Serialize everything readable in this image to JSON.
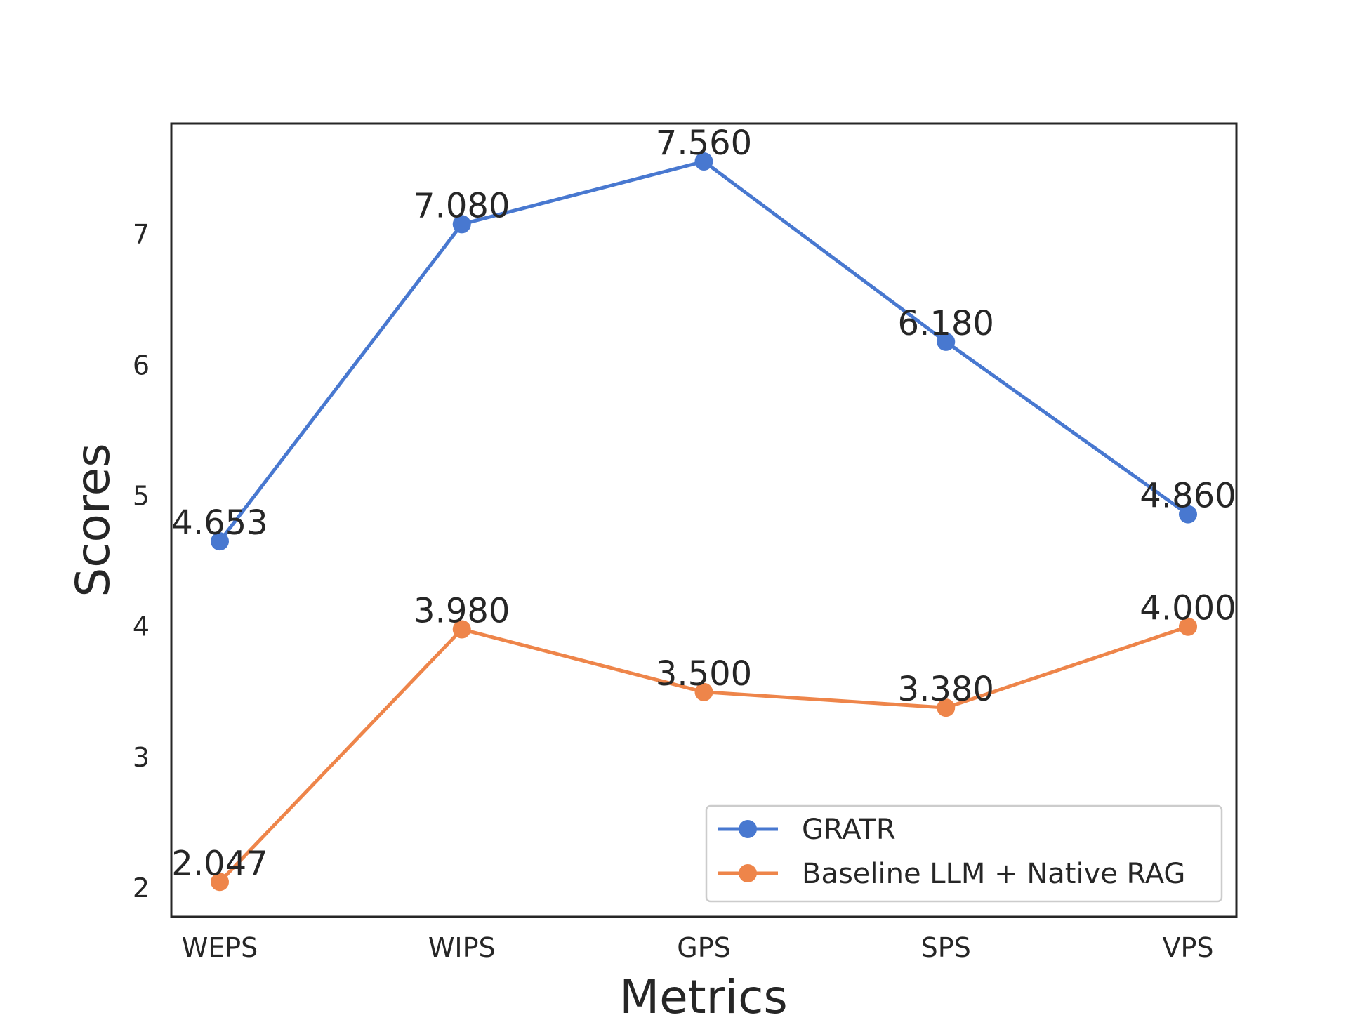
{
  "chart_data": {
    "type": "line",
    "title": "",
    "xlabel": "Metrics",
    "ylabel": "Scores",
    "categories": [
      "WEPS",
      "WIPS",
      "GPS",
      "SPS",
      "VPS"
    ],
    "ylim": [
      1.78,
      7.85
    ],
    "yticks": [
      "2",
      "3",
      "4",
      "5",
      "6",
      "7"
    ],
    "grid": false,
    "legend_position": "lower-right",
    "series": [
      {
        "name": "GRATR",
        "color": "#4878d0",
        "values": [
          4.653,
          7.08,
          7.56,
          6.18,
          4.86
        ],
        "labels": [
          "4.653",
          "7.080",
          "7.560",
          "6.180",
          "4.860"
        ]
      },
      {
        "name": "Baseline LLM + Native RAG",
        "color": "#ee854a",
        "values": [
          2.047,
          3.98,
          3.5,
          3.38,
          4.0
        ],
        "labels": [
          "2.047",
          "3.980",
          "3.500",
          "3.380",
          "4.000"
        ]
      }
    ]
  }
}
